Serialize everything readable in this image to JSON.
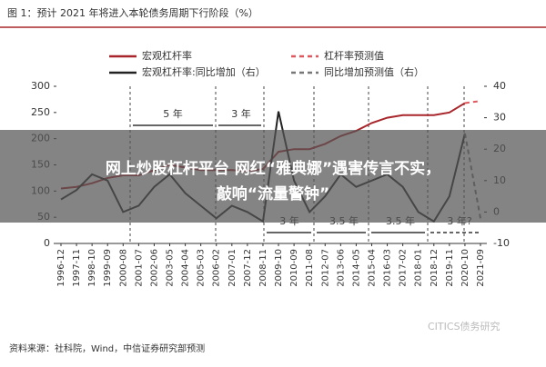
{
  "chart_data": {
    "type": "line",
    "title": "图 1：预计 2021 年将进入本轮债务周期下行阶段（%）",
    "categories": [
      "1996-12",
      "1997-11",
      "1998-10",
      "1999-09",
      "2000-08",
      "2001-07",
      "2002-06",
      "2003-05",
      "2004-04",
      "2005-03",
      "2006-02",
      "2007-01",
      "2007-12",
      "2008-11",
      "2009-10",
      "2010-09",
      "2011-08",
      "2012-07",
      "2013-06",
      "2014-05",
      "2015-04",
      "2016-03",
      "2017-02",
      "2018-01",
      "2018-12",
      "2019-11",
      "2020-10",
      "2021-09"
    ],
    "series": [
      {
        "name": "宏观杠杆率",
        "color": "#a8262b",
        "dashed": false,
        "values": [
          105,
          108,
          115,
          125,
          130,
          130,
          140,
          150,
          145,
          140,
          140,
          140,
          138,
          142,
          175,
          180,
          180,
          190,
          205,
          215,
          230,
          240,
          245,
          245,
          245,
          250,
          268,
          null
        ]
      },
      {
        "name": "杠杆率预测值",
        "color": "#e0585e",
        "dashed": true,
        "values": [
          null,
          null,
          null,
          null,
          null,
          null,
          null,
          null,
          null,
          null,
          null,
          null,
          null,
          null,
          null,
          null,
          null,
          null,
          null,
          null,
          null,
          null,
          null,
          null,
          null,
          null,
          268,
          272
        ]
      },
      {
        "name": "宏观杠杆率:同比增加（右）",
        "color": "#222222",
        "dashed": false,
        "axis": "y2",
        "values": [
          4,
          7,
          12,
          10,
          0,
          2,
          8,
          12,
          6,
          2,
          -2,
          2,
          0,
          -3,
          32,
          10,
          0,
          5,
          12,
          8,
          10,
          12,
          8,
          0,
          -3,
          5,
          25,
          null
        ]
      },
      {
        "name": "同比增加预测值（右）",
        "color": "#777777",
        "dashed": true,
        "axis": "y2",
        "values": [
          null,
          null,
          null,
          null,
          null,
          null,
          null,
          null,
          null,
          null,
          null,
          null,
          null,
          null,
          null,
          null,
          null,
          null,
          null,
          null,
          null,
          null,
          null,
          null,
          null,
          null,
          25,
          -2
        ]
      }
    ],
    "ylim": [
      0,
      300
    ],
    "yticks": [
      0,
      50,
      100,
      150,
      200,
      250,
      300
    ],
    "y2lim": [
      -10,
      40
    ],
    "y2ticks": [
      -10,
      0,
      10,
      20,
      30,
      40
    ],
    "annotations": [
      "5 年",
      "3 年",
      "3 年",
      "3.5 年",
      "3.5 年",
      "3 年?"
    ]
  },
  "overlay": {
    "lines": [
      "网上炒股杠杆平台 网红“雅典娜”遇害传言不实，",
      "敲响“流量警钟”"
    ]
  },
  "source": "资料来源：社科院，Wind，中信证券研究部预测",
  "watermark": "CITICS债务研究"
}
